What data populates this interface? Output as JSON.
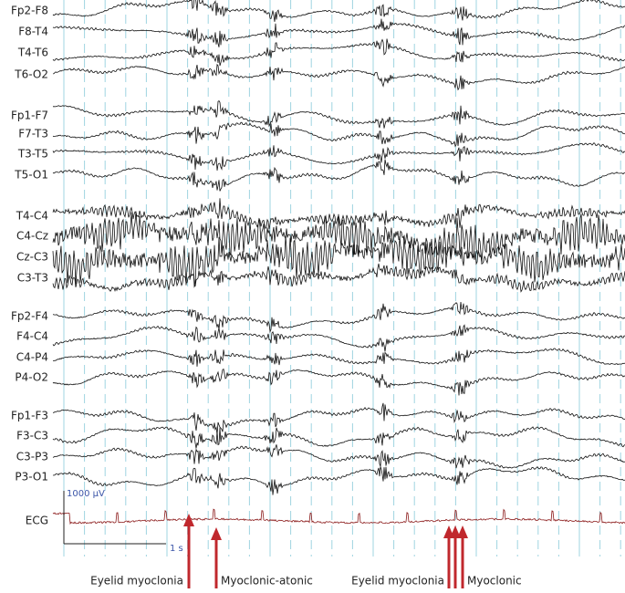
{
  "channels": [
    "Fp2-F8",
    "F8-T4",
    "T4-T6",
    "T6-O2",
    "Fp1-F7",
    "F7-T3",
    "T3-T5",
    "T5-O1",
    "T4-C4",
    "C4-Cz",
    "Cz-C3",
    "C3-T3",
    "Fp2-F4",
    "F4-C4",
    "C4-P4",
    "P4-O2",
    "Fp1-F3",
    "F3-C3",
    "C3-P3",
    "P3-O1",
    "ECG"
  ],
  "scale": {
    "amplitude": "1000 µV",
    "time": "1 s"
  },
  "annotations": [
    "Eyelid myoclonia",
    "Myoclonic-atonic",
    "Eyelid myoclonia",
    "Myoclonic"
  ]
}
